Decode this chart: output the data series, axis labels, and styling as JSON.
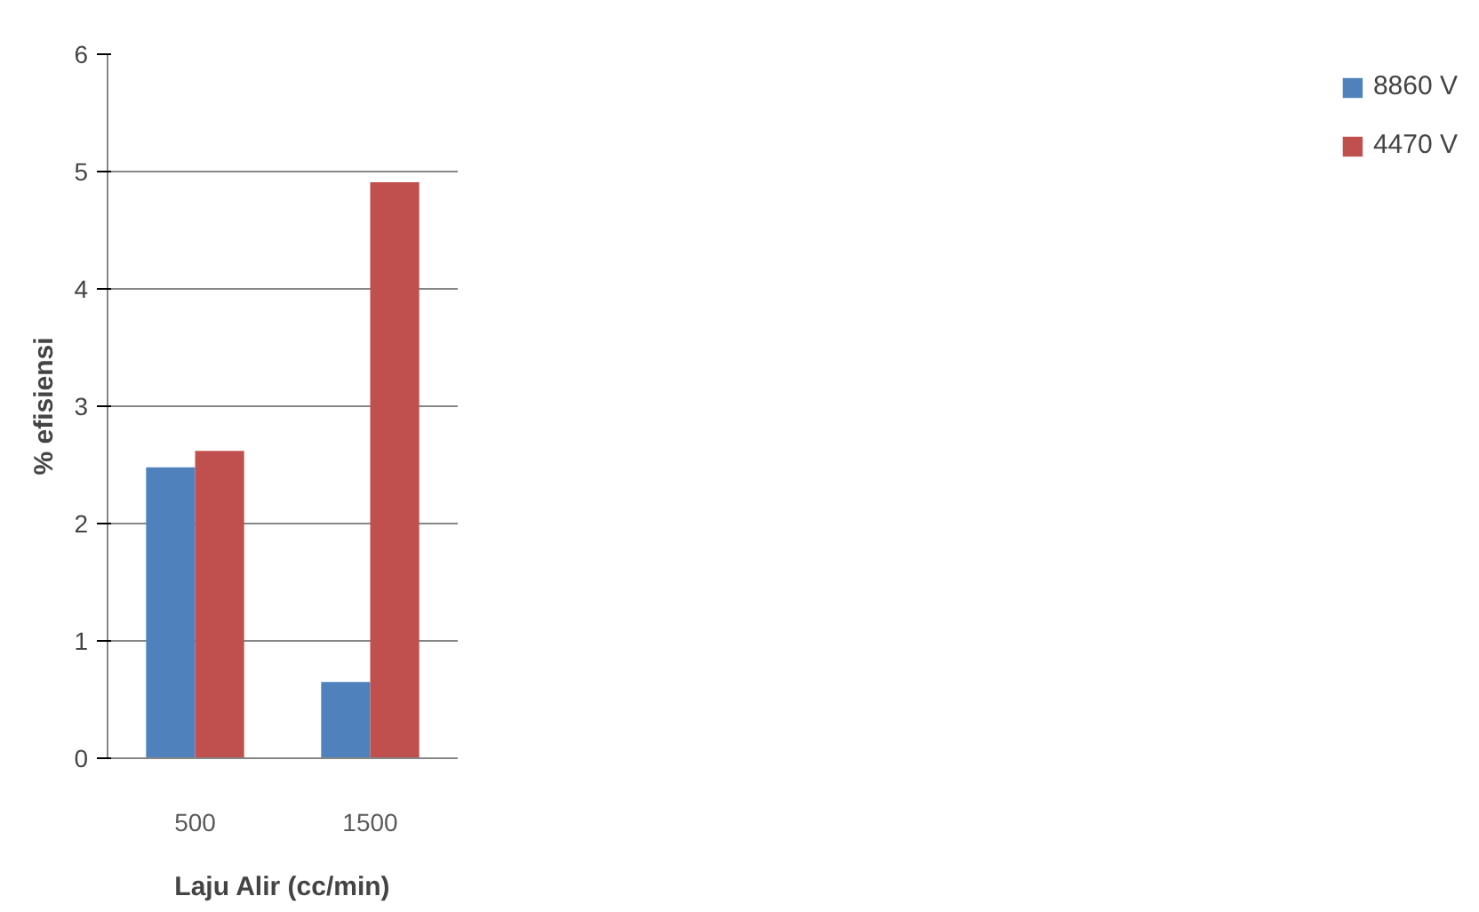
{
  "chart_data": {
    "type": "bar",
    "xlabel": "Laju Alir (cc/min)",
    "ylabel": "% efisiensi",
    "categories": [
      "500",
      "1500"
    ],
    "series": [
      {
        "name": "8860 V",
        "color": "#4f81bd",
        "values": [
          2.48,
          0.65
        ]
      },
      {
        "name": "4470 V",
        "color": "#c0504d",
        "values": [
          2.62,
          4.91
        ]
      }
    ],
    "ylim": [
      0,
      6
    ],
    "yticks": [
      0,
      1,
      2,
      3,
      4,
      5,
      6
    ],
    "grid": "y",
    "legend": "right"
  }
}
